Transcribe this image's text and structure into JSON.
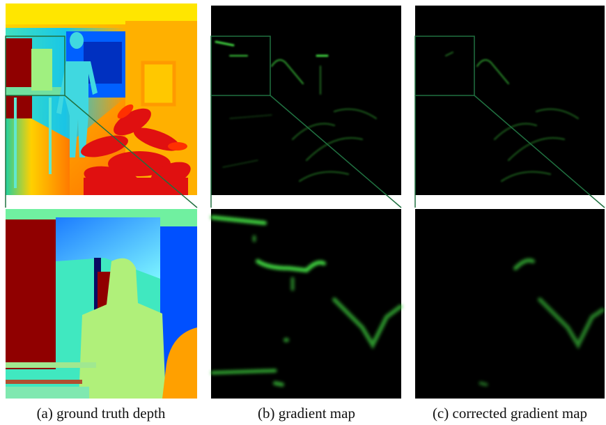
{
  "figure": {
    "panels": [
      {
        "caption": "(a) ground truth depth"
      },
      {
        "caption": "(b) gradient map"
      },
      {
        "caption": "(c) corrected gradient map"
      }
    ]
  }
}
